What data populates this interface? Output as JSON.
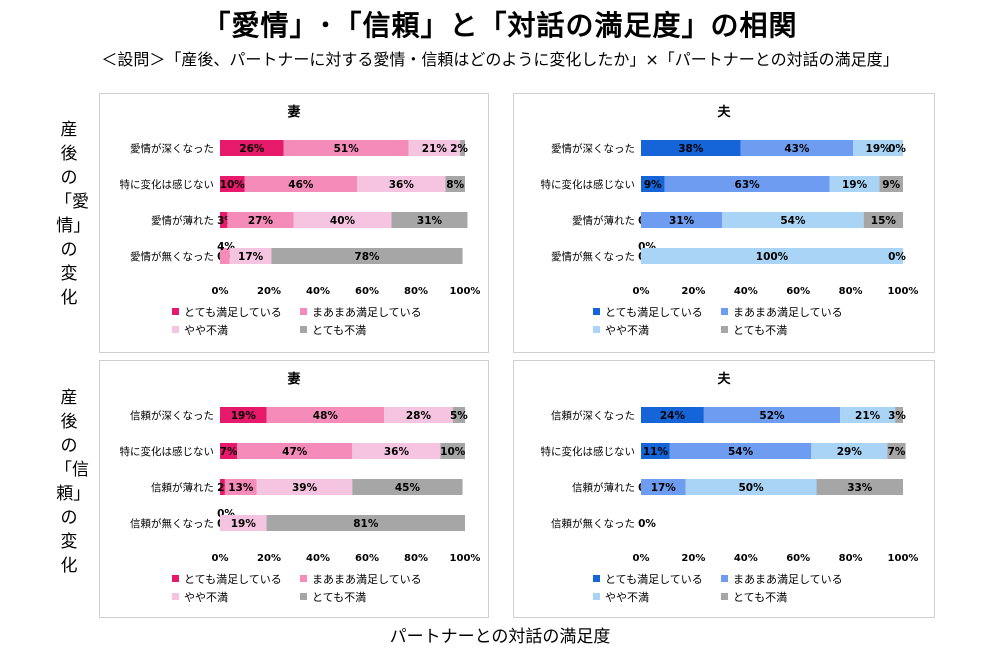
{
  "title": "「愛情」･「信頼」と「対話の満足度」の相関",
  "subtitle": "＜設問＞「産後、パートナーに対する愛情・信頼はどのように変化したか」×「パートナーとの対話の満足度」",
  "row_labels": [
    "産後の「愛情」の変化",
    "産後の「信頼」の変化"
  ],
  "footer_label": "パートナーとの対話の満足度",
  "colors": {
    "wife": [
      "#E6196B",
      "#F48BB9",
      "#F5C4E0",
      "#A6A6A6"
    ],
    "husband": [
      "#1565D8",
      "#6E9CF0",
      "#A9D4F5",
      "#A6A6A6"
    ]
  },
  "chart_data": [
    {
      "type": "bar",
      "orientation": "horizontal",
      "stacked": true,
      "title": "妻",
      "categories": [
        "愛情が深くなった",
        "特に変化は感じない",
        "愛情が薄れた",
        "愛情が無くなった"
      ],
      "xticks": [
        "0%",
        "20%",
        "40%",
        "60%",
        "80%",
        "100%"
      ],
      "xlim": [
        0,
        100
      ],
      "legend": "bottom",
      "series": [
        {
          "name": "とても満足している",
          "values": [
            26,
            10,
            3,
            0
          ]
        },
        {
          "name": "まあまあ満足している",
          "values": [
            51,
            46,
            27,
            4
          ]
        },
        {
          "name": "やや不満",
          "values": [
            21,
            36,
            40,
            17
          ]
        },
        {
          "name": "とても不満",
          "values": [
            2,
            8,
            31,
            78
          ]
        }
      ]
    },
    {
      "type": "bar",
      "orientation": "horizontal",
      "stacked": true,
      "title": "夫",
      "categories": [
        "愛情が深くなった",
        "特に変化は感じない",
        "愛情が薄れた",
        "愛情が無くなった"
      ],
      "xticks": [
        "0%",
        "20%",
        "40%",
        "60%",
        "80%",
        "100%"
      ],
      "xlim": [
        0,
        100
      ],
      "legend": "bottom",
      "series": [
        {
          "name": "とても満足している",
          "values": [
            38,
            9,
            0,
            0
          ]
        },
        {
          "name": "まあまあ満足している",
          "values": [
            43,
            63,
            31,
            0
          ]
        },
        {
          "name": "やや不満",
          "values": [
            19,
            19,
            54,
            100
          ]
        },
        {
          "name": "とても不満",
          "values": [
            0,
            9,
            15,
            0
          ]
        }
      ]
    },
    {
      "type": "bar",
      "orientation": "horizontal",
      "stacked": true,
      "title": "妻",
      "categories": [
        "信頼が深くなった",
        "特に変化は感じない",
        "信頼が薄れた",
        "信頼が無くなった"
      ],
      "xticks": [
        "0%",
        "20%",
        "40%",
        "60%",
        "80%",
        "100%"
      ],
      "xlim": [
        0,
        100
      ],
      "legend": "bottom",
      "series": [
        {
          "name": "とても満足している",
          "values": [
            19,
            7,
            2,
            0
          ]
        },
        {
          "name": "まあまあ満足している",
          "values": [
            48,
            47,
            13,
            0
          ]
        },
        {
          "name": "やや不満",
          "values": [
            28,
            36,
            39,
            19
          ]
        },
        {
          "name": "とても不満",
          "values": [
            5,
            10,
            45,
            81
          ]
        }
      ]
    },
    {
      "type": "bar",
      "orientation": "horizontal",
      "stacked": true,
      "title": "夫",
      "categories": [
        "信頼が深くなった",
        "特に変化は感じない",
        "信頼が薄れた",
        "信頼が無くなった"
      ],
      "xticks": [
        "0%",
        "20%",
        "40%",
        "60%",
        "80%",
        "100%"
      ],
      "xlim": [
        0,
        100
      ],
      "legend": "bottom",
      "series": [
        {
          "name": "とても満足している",
          "values": [
            24,
            11,
            0,
            0
          ]
        },
        {
          "name": "まあまあ満足している",
          "values": [
            52,
            54,
            17,
            null
          ]
        },
        {
          "name": "やや不満",
          "values": [
            21,
            29,
            50,
            null
          ]
        },
        {
          "name": "とても不満",
          "values": [
            3,
            7,
            33,
            null
          ]
        }
      ]
    }
  ]
}
